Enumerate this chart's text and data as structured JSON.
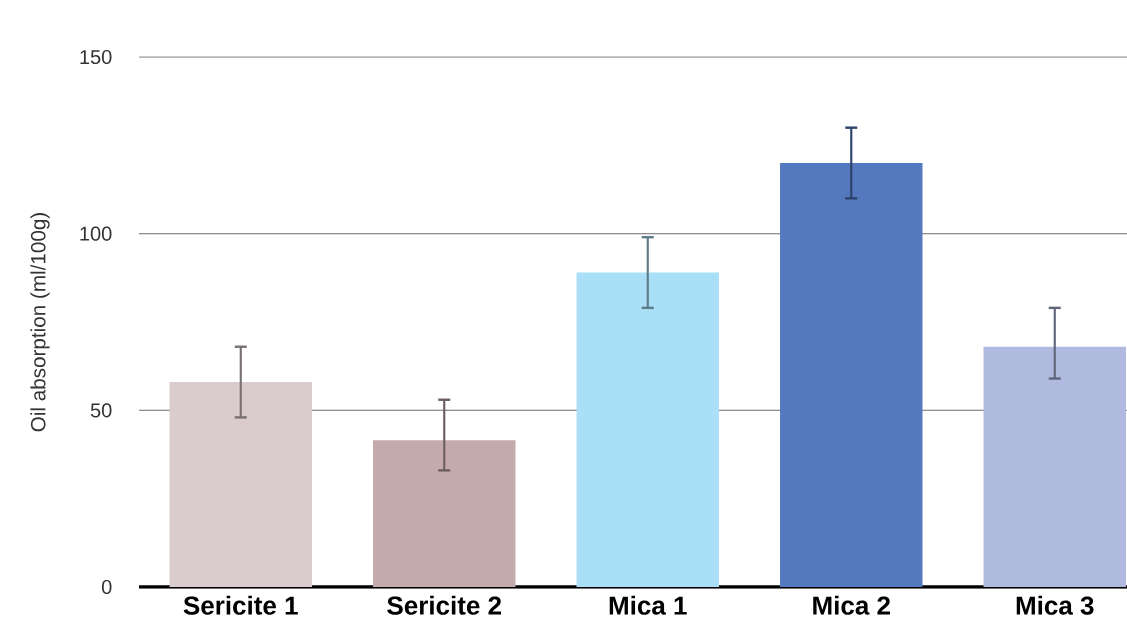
{
  "chart_data": {
    "type": "bar",
    "ylabel": "Oil absorption (ml/100g)",
    "categories": [
      "Sericite 1",
      "Sericite 2",
      "Mica 1",
      "Mica 2",
      "Mica 3"
    ],
    "values": [
      58,
      41.5,
      89,
      120,
      68
    ],
    "errors": [
      [
        48,
        68
      ],
      [
        33,
        53
      ],
      [
        79,
        99
      ],
      [
        110,
        130
      ],
      [
        59,
        79
      ]
    ],
    "colors": [
      "#dacbcd",
      "#c4aaad",
      "#aadff8",
      "#5479be",
      "#afbade"
    ],
    "ylim": [
      0,
      150
    ],
    "yticks": [
      0,
      50,
      100,
      150
    ],
    "grid": "y"
  }
}
